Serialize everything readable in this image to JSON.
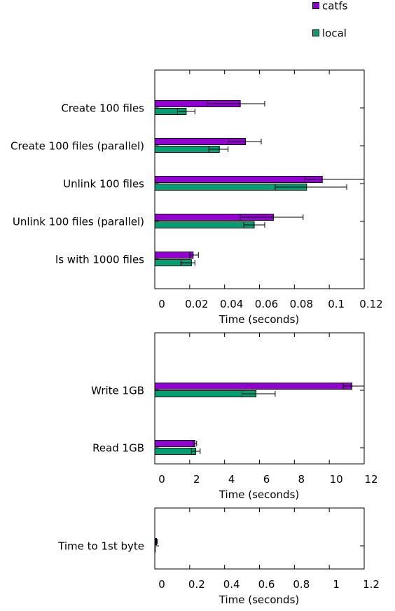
{
  "legend": {
    "placement": "top-right",
    "entries": [
      {
        "label": "catfs",
        "color": "#9400d3"
      },
      {
        "label": "local",
        "color": "#009e73"
      }
    ]
  },
  "chart_data": [
    {
      "type": "bar",
      "orientation": "horizontal",
      "categories": [
        "Create 100 files",
        "Create 100 files (parallel)",
        "Unlink 100 files",
        "Unlink 100 files (parallel)",
        "ls with 1000 files"
      ],
      "series": [
        {
          "name": "catfs",
          "color": "#9400d3",
          "values": [
            0.049,
            0.052,
            0.096,
            0.068,
            0.022
          ],
          "err_low": [
            0.03,
            0.042,
            0.086,
            0.049,
            0.02
          ],
          "err_high": [
            0.063,
            0.061,
            0.121,
            0.085,
            0.025
          ]
        },
        {
          "name": "local",
          "color": "#009e73",
          "values": [
            0.018,
            0.037,
            0.087,
            0.057,
            0.021
          ],
          "err_low": [
            0.013,
            0.031,
            0.069,
            0.051,
            0.015
          ],
          "err_high": [
            0.023,
            0.042,
            0.11,
            0.063,
            0.023
          ]
        }
      ],
      "xlabel": "Time (seconds)",
      "xlim": [
        0,
        0.12
      ],
      "xticks": [
        0,
        0.02,
        0.04,
        0.06,
        0.08,
        0.1,
        0.12
      ],
      "xtick_labels": [
        "0",
        "0.02",
        "0.04",
        "0.06",
        "0.08",
        "0.1",
        "0.12"
      ],
      "grid": false
    },
    {
      "type": "bar",
      "orientation": "horizontal",
      "categories": [
        "Write 1GB",
        "Read 1GB"
      ],
      "series": [
        {
          "name": "catfs",
          "color": "#9400d3",
          "values": [
            11.3,
            2.3
          ],
          "err_low": [
            10.8,
            2.2
          ],
          "err_high": [
            12.0,
            2.4
          ]
        },
        {
          "name": "local",
          "color": "#009e73",
          "values": [
            5.8,
            2.35
          ],
          "err_low": [
            5.0,
            2.1
          ],
          "err_high": [
            6.9,
            2.6
          ]
        }
      ],
      "xlabel": "Time (seconds)",
      "xlim": [
        0,
        12
      ],
      "xticks": [
        0,
        2,
        4,
        6,
        8,
        10,
        12
      ],
      "xtick_labels": [
        "0",
        "2",
        "4",
        "6",
        "8",
        "10",
        "12"
      ],
      "grid": false
    },
    {
      "type": "bar",
      "orientation": "horizontal",
      "categories": [
        "Time to 1st byte"
      ],
      "series": [
        {
          "name": "catfs",
          "color": "#9400d3",
          "values": [
            0.01
          ],
          "err_low": [
            0.005
          ],
          "err_high": [
            0.015
          ]
        },
        {
          "name": "local",
          "color": "#009e73",
          "values": [
            0.002
          ],
          "err_low": [
            0.001
          ],
          "err_high": [
            0.003
          ]
        }
      ],
      "xlabel": "Time (seconds)",
      "xlim": [
        0,
        1.2
      ],
      "xticks": [
        0,
        0.2,
        0.4,
        0.6,
        0.8,
        1,
        1.2
      ],
      "xtick_labels": [
        "0",
        "0.2",
        "0.4",
        "0.6",
        "0.8",
        "1",
        "1.2"
      ],
      "grid": false
    }
  ]
}
